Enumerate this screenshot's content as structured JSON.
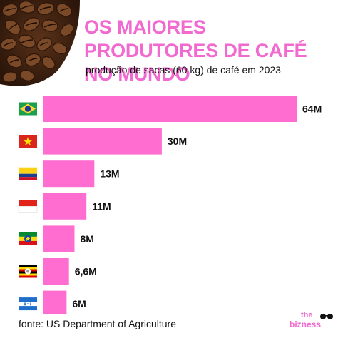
{
  "title": "OS MAIORES PRODUTORES DE CAFÉ NO MUNDO",
  "subtitle": "produção de sacas (60 kg) de café em 2023",
  "source": "fonte: US Department of Agriculture",
  "logo": {
    "top": "the",
    "bottom": "bizness"
  },
  "colors": {
    "accent": "#f26ad0",
    "bar": "#ff6dd1"
  },
  "chart_data": {
    "type": "bar",
    "orientation": "horizontal",
    "categories_icons": [
      "brazil-flag",
      "vietnam-flag",
      "colombia-flag",
      "indonesia-flag",
      "ethiopia-flag",
      "uganda-flag",
      "honduras-flag"
    ],
    "values": [
      64,
      30,
      13,
      11,
      8,
      6.6,
      6
    ],
    "labels": [
      "64M",
      "30M",
      "13M",
      "11M",
      "8M",
      "6,6M",
      "6M"
    ],
    "unit": "M",
    "xlim": [
      0,
      64
    ]
  }
}
